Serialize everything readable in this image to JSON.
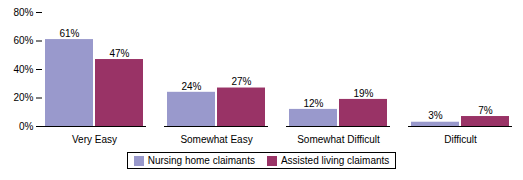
{
  "chart_data": {
    "type": "bar",
    "categories": [
      "Very Easy",
      "Somewhat Easy",
      "Somewhat Difficult",
      "Difficult"
    ],
    "series": [
      {
        "name": "Nursing home claimants",
        "color": "#9999CC",
        "values": [
          61,
          24,
          12,
          3
        ],
        "value_labels": [
          "61%",
          "24%",
          "12%",
          "3%"
        ]
      },
      {
        "name": "Assisted living claimants",
        "color": "#993366",
        "values": [
          47,
          27,
          19,
          7
        ],
        "value_labels": [
          "47%",
          "27%",
          "19%",
          "7%"
        ]
      }
    ],
    "ylim": [
      0,
      80
    ],
    "yticks": [
      {
        "value": 0,
        "label": "0%"
      },
      {
        "value": 20,
        "label": "20%"
      },
      {
        "value": 40,
        "label": "40%"
      },
      {
        "value": 60,
        "label": "60%"
      },
      {
        "value": 80,
        "label": "80%"
      }
    ],
    "data_labels": true,
    "grid": false,
    "legend": "bottom"
  }
}
